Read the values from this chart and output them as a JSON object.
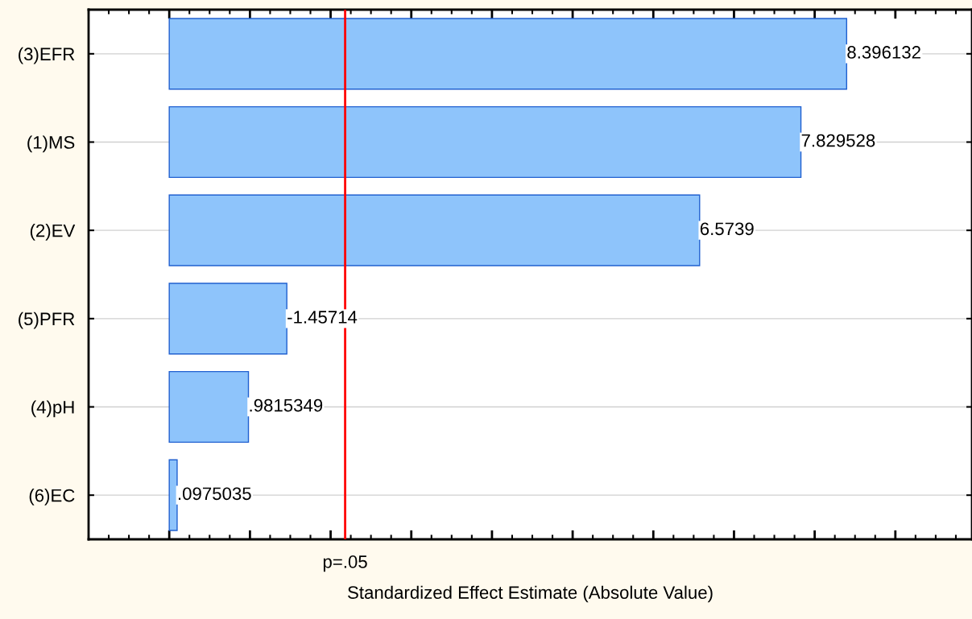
{
  "chart_data": {
    "type": "bar",
    "orientation": "horizontal",
    "categories": [
      "(3)EFR",
      "(1)MS",
      "(2)EV",
      "(5)PFR",
      "(4)pH",
      "(6)EC"
    ],
    "values": [
      8.396132,
      7.829528,
      6.5739,
      1.45714,
      0.9815349,
      0.0975035
    ],
    "value_labels": [
      "8.396132",
      "7.829528",
      "6.5739",
      null,
      ".9815349",
      ".0975035"
    ],
    "annotations": [
      {
        "text": "-1.45714",
        "x": 1.45714,
        "y": "(5)PFR"
      }
    ],
    "color": "#8ec4fb",
    "xlabel": "Standardized Effect Estimate (Absolute Value)",
    "xlim": [
      -1.0,
      9.95
    ],
    "xticks": [
      {
        "value": 0,
        "label": null
      },
      {
        "value": 1,
        "label": null
      },
      {
        "value": 2,
        "label": null
      },
      {
        "value": 3,
        "label": null
      },
      {
        "value": 4,
        "label": null
      },
      {
        "value": 5,
        "label": null
      },
      {
        "value": 6,
        "label": null
      },
      {
        "value": 7,
        "label": null
      },
      {
        "value": 8,
        "label": null
      },
      {
        "value": 9,
        "label": null
      }
    ],
    "ref_lines": [
      {
        "axis": "x",
        "value": 2.18,
        "label": "p=.05",
        "color": "#ff0000"
      }
    ],
    "grid": "y"
  }
}
